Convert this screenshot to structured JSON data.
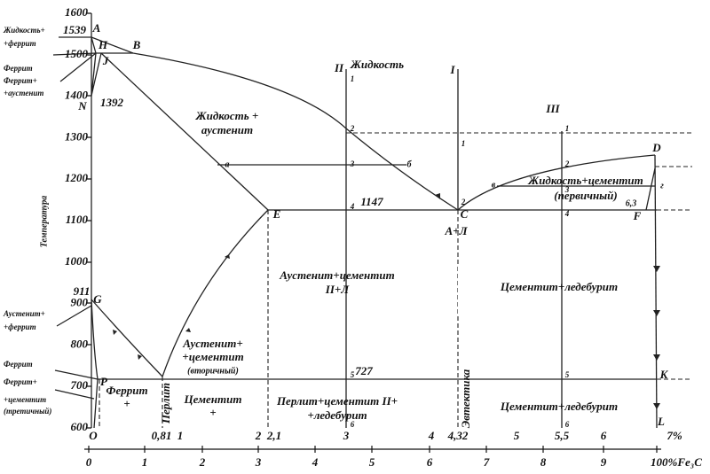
{
  "axes": {
    "y_label": "Температура",
    "y_ticks": [
      "1600",
      "1500",
      "1400",
      "1300",
      "1200",
      "1100",
      "1000",
      "900",
      "800",
      "700",
      "600"
    ],
    "x_ticks": [
      "O",
      "0,81",
      "1",
      "2",
      "2,1",
      "3",
      "4",
      "4,32",
      "5",
      "5,5",
      "6",
      "7%"
    ],
    "x2_ticks": [
      "0",
      "1",
      "2",
      "3",
      "4",
      "5",
      "6",
      "7",
      "8",
      "9",
      "100%Fe₃C"
    ]
  },
  "temperatures": [
    "1539",
    "1392",
    "1147",
    "911",
    "727"
  ],
  "points": [
    "A",
    "H",
    "J",
    "B",
    "N",
    "E",
    "C",
    "D",
    "F",
    "G",
    "P",
    "K",
    "L",
    "a",
    "б",
    "в",
    "г",
    "6,3"
  ],
  "alloy_lines": [
    "I",
    "II",
    "III"
  ],
  "steps_I": [
    "1",
    "2"
  ],
  "steps_II": [
    "1",
    "2",
    "3",
    "4",
    "5",
    "6"
  ],
  "steps_III": [
    "1",
    "2",
    "3",
    "4",
    "5",
    "6"
  ],
  "regions": [
    "Жидкость",
    "Жидкость +",
    "аустенит",
    "Жидкость+цементит",
    "(первичный)",
    "А+Л",
    "Аустенит+цементит",
    "II+Л",
    "Цементит+ледебурит",
    "Аустенит+",
    "+цементит",
    "(вторичный)",
    "Феррит",
    "+",
    "Цементит",
    "+",
    "Перлит",
    "Перлит+цементит II+",
    "+ледебурит",
    "Эвтектика",
    "Цементит+ледебурит"
  ],
  "left_labels": [
    "Жидкость+",
    "+феррит",
    "Феррит",
    "Феррит+",
    "+аустенит",
    "Аустенит+",
    "+феррит",
    "Феррит",
    "Феррит+",
    "+цементит",
    "(третичный)"
  ]
}
